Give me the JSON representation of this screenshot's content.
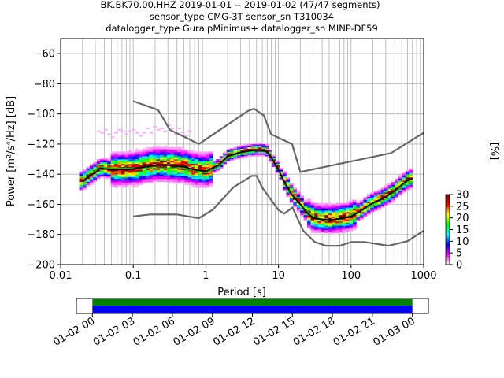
{
  "figure": {
    "title_lines": [
      "BK.BK70.00.HHZ   2019-01-01 -- 2019-01-02  (47/47 segments)",
      "sensor_type CMG-3T sensor_sn T310034",
      "datalogger_type GuralpMinimus+ datalogger_sn MINP-DF59"
    ]
  },
  "chart_data": [
    {
      "type": "heatmap",
      "name": "ppsd",
      "xlabel": "Period [s]",
      "ylabel": "Power [m²/s⁴/Hz] [dB]",
      "xscale": "log",
      "xlim": [
        0.01,
        1000
      ],
      "ylim": [
        -200,
        -50
      ],
      "xticks": [
        0.01,
        0.1,
        1,
        10,
        100,
        1000
      ],
      "xtick_labels": [
        "0.01",
        "0.1",
        "1",
        "10",
        "100",
        "1000"
      ],
      "yticks": [
        -200,
        -180,
        -160,
        -140,
        -120,
        -100,
        -80,
        -60
      ],
      "grid": true,
      "colorbar": {
        "label": "[%]",
        "range": [
          0,
          30
        ],
        "ticks": [
          0,
          5,
          10,
          15,
          20,
          25,
          30
        ],
        "colors": [
          "#ffffff",
          "#ff00ff",
          "#0000ff",
          "#00ffff",
          "#00ff00",
          "#ffff00",
          "#ff0000",
          "#800000"
        ]
      },
      "noise_models": [
        {
          "name": "NHNM",
          "period": [
            0.1,
            0.22,
            0.32,
            0.8,
            3.8,
            4.6,
            6.3,
            7.9,
            15.4,
            20,
            354.8,
            1000
          ],
          "power": [
            -91.5,
            -97.4,
            -110.5,
            -120,
            -98,
            -96.5,
            -101,
            -113.5,
            -120,
            -138.5,
            -126,
            -112.5
          ]
        },
        {
          "name": "NLNM",
          "period": [
            0.1,
            0.17,
            0.4,
            0.8,
            1.24,
            2.4,
            4.3,
            5,
            6,
            10,
            12,
            15.6,
            21.9,
            31.6,
            45,
            70,
            101,
            154,
            328,
            600,
            1000
          ],
          "power": [
            -168,
            -166.7,
            -166.7,
            -169.2,
            -163.7,
            -148.6,
            -141.1,
            -141.1,
            -149,
            -163.8,
            -166.2,
            -162.1,
            -177.5,
            -185,
            -187.5,
            -187.5,
            -185,
            -185,
            -187.5,
            -184.4,
            -177.5
          ]
        }
      ],
      "mean": {
        "period": [
          0.02,
          0.025,
          0.03,
          0.035,
          0.05,
          0.08,
          0.1,
          0.15,
          0.2,
          0.3,
          0.5,
          0.7,
          1,
          1.5,
          2,
          3,
          4,
          5,
          6,
          7,
          8,
          10,
          12,
          15,
          20,
          25,
          30,
          40,
          60,
          80,
          100,
          130,
          170,
          200,
          250,
          300,
          400,
          500,
          600,
          700
        ],
        "power": [
          -145,
          -141,
          -139,
          -136,
          -137,
          -137,
          -136.5,
          -135,
          -134,
          -134,
          -135,
          -137,
          -138,
          -134,
          -128,
          -125.5,
          -124.5,
          -124,
          -124,
          -125,
          -129,
          -137,
          -145,
          -153,
          -160,
          -166,
          -169,
          -170,
          -170,
          -169,
          -168,
          -165,
          -161,
          -159,
          -157,
          -155,
          -151,
          -147,
          -144,
          -143
        ]
      },
      "mode": {
        "period": [
          0.02,
          0.025,
          0.03,
          0.035,
          0.05,
          0.08,
          0.1,
          0.15,
          0.2,
          0.3,
          0.5,
          0.7,
          1,
          1.5,
          2,
          3,
          4,
          5,
          6,
          7,
          8,
          10,
          12,
          15,
          20,
          25,
          30,
          40,
          60,
          80,
          100,
          130,
          170,
          200,
          250,
          300,
          400,
          500,
          600,
          700
        ],
        "power": [
          -144,
          -141,
          -138,
          -135,
          -136,
          -136,
          -136,
          -136,
          -136,
          -136,
          -136,
          -137.5,
          -139,
          -135,
          -129,
          -126,
          -125,
          -124,
          -124,
          -125,
          -128,
          -137,
          -146,
          -153,
          -160,
          -165,
          -168,
          -170,
          -170,
          -169,
          -167,
          -165,
          -162,
          -160,
          -157,
          -155,
          -152,
          -148,
          -145,
          -145
        ]
      }
    },
    {
      "type": "timeline",
      "name": "data-coverage",
      "tick_labels": [
        "01-02 00",
        "01-02 03",
        "01-02 06",
        "01-02 09",
        "01-02 12",
        "01-02 15",
        "01-02 18",
        "01-02 21",
        "01-03 00"
      ],
      "tick_hours": [
        0,
        3,
        6,
        9,
        12,
        15,
        18,
        21,
        24
      ],
      "xlim_hours": [
        -1.2,
        25.2
      ],
      "coverage_hours": [
        0,
        24
      ],
      "bars": [
        {
          "name": "used",
          "color": "#008000"
        },
        {
          "name": "available",
          "color": "#0000ff"
        }
      ]
    }
  ]
}
